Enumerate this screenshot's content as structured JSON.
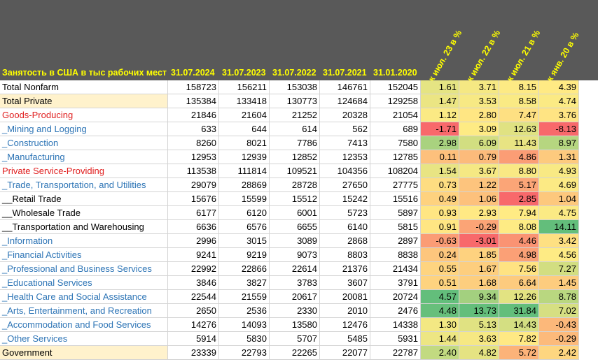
{
  "header": {
    "title": "Занятость в США в тыс рабочих мест",
    "columns": [
      "31.07.2024",
      "31.07.2023",
      "31.07.2022",
      "31.07.2021",
      "31.01.2020",
      "к июл. 23 в %",
      "к июл. 22 в %",
      "к июл. 21 в %",
      "к янв. 20 в %"
    ]
  },
  "table": {
    "rows": [
      {
        "label": "Total Nonfarm",
        "color": "#000000",
        "cells": [
          "158723",
          "156211",
          "153038",
          "146761",
          "152045",
          "1.61",
          "3.71",
          "8.15",
          "4.39"
        ]
      },
      {
        "label": "Total Private",
        "color": "#000000",
        "bg": "#fff2cc",
        "cells": [
          "135384",
          "133418",
          "130773",
          "124684",
          "129258",
          "1.47",
          "3.53",
          "8.58",
          "4.74"
        ]
      },
      {
        "label": "Goods-Producing",
        "color": "#e02020",
        "cells": [
          "21846",
          "21604",
          "21252",
          "20328",
          "21054",
          "1.12",
          "2.80",
          "7.47",
          "3.76"
        ]
      },
      {
        "label": "_Mining and Logging",
        "color": "#2e75b6",
        "cells": [
          "633",
          "644",
          "614",
          "562",
          "689",
          "-1.71",
          "3.09",
          "12.63",
          "-8.13"
        ]
      },
      {
        "label": "_Construction",
        "color": "#2e75b6",
        "cells": [
          "8260",
          "8021",
          "7786",
          "7413",
          "7580",
          "2.98",
          "6.09",
          "11.43",
          "8.97"
        ]
      },
      {
        "label": "_Manufacturing",
        "color": "#2e75b6",
        "cells": [
          "12953",
          "12939",
          "12852",
          "12353",
          "12785",
          "0.11",
          "0.79",
          "4.86",
          "1.31"
        ]
      },
      {
        "label": "Private Service-Providing",
        "color": "#e02020",
        "cells": [
          "113538",
          "111814",
          "109521",
          "104356",
          "108204",
          "1.54",
          "3.67",
          "8.80",
          "4.93"
        ]
      },
      {
        "label": "_Trade, Transportation, and Utilities",
        "color": "#2e75b6",
        "cells": [
          "29079",
          "28869",
          "28728",
          "27650",
          "27775",
          "0.73",
          "1.22",
          "5.17",
          "4.69"
        ]
      },
      {
        "label": "__Retail Trade",
        "color": "#000000",
        "cells": [
          "15676",
          "15599",
          "15512",
          "15242",
          "15516",
          "0.49",
          "1.06",
          "2.85",
          "1.04"
        ]
      },
      {
        "label": "__Wholesale Trade",
        "color": "#000000",
        "cells": [
          "6177",
          "6120",
          "6001",
          "5723",
          "5897",
          "0.93",
          "2.93",
          "7.94",
          "4.75"
        ]
      },
      {
        "label": "__Transportation and Warehousing",
        "color": "#000000",
        "cells": [
          "6636",
          "6576",
          "6655",
          "6140",
          "5815",
          "0.91",
          "-0.29",
          "8.08",
          "14.11"
        ]
      },
      {
        "label": "_Information",
        "color": "#2e75b6",
        "cells": [
          "2996",
          "3015",
          "3089",
          "2868",
          "2897",
          "-0.63",
          "-3.01",
          "4.46",
          "3.42"
        ]
      },
      {
        "label": "_Financial Activities",
        "color": "#2e75b6",
        "cells": [
          "9241",
          "9219",
          "9073",
          "8803",
          "8838",
          "0.24",
          "1.85",
          "4.98",
          "4.56"
        ]
      },
      {
        "label": "_Professional and Business Services",
        "color": "#2e75b6",
        "cells": [
          "22992",
          "22866",
          "22614",
          "21376",
          "21434",
          "0.55",
          "1.67",
          "7.56",
          "7.27"
        ]
      },
      {
        "label": "_Educational Services",
        "color": "#2e75b6",
        "cells": [
          "3846",
          "3827",
          "3783",
          "3607",
          "3791",
          "0.51",
          "1.68",
          "6.64",
          "1.45"
        ]
      },
      {
        "label": "_Health Care and Social Assistance",
        "color": "#2e75b6",
        "cells": [
          "22544",
          "21559",
          "20617",
          "20081",
          "20724",
          "4.57",
          "9.34",
          "12.26",
          "8.78"
        ]
      },
      {
        "label": "_Arts, Entertainment, and Recreation",
        "color": "#2e75b6",
        "cells": [
          "2650",
          "2536",
          "2330",
          "2010",
          "2476",
          "4.48",
          "13.73",
          "31.84",
          "7.02"
        ]
      },
      {
        "label": "_Accommodation and Food Services",
        "color": "#2e75b6",
        "cells": [
          "14276",
          "14093",
          "13580",
          "12476",
          "14338",
          "1.30",
          "5.13",
          "14.43",
          "-0.43"
        ]
      },
      {
        "label": "_Other Services",
        "color": "#2e75b6",
        "cells": [
          "5914",
          "5830",
          "5707",
          "5485",
          "5931",
          "1.44",
          "3.63",
          "7.82",
          "-0.29"
        ]
      },
      {
        "label": "Government",
        "color": "#000000",
        "bg": "#fff2cc",
        "cells": [
          "23339",
          "22793",
          "22265",
          "22077",
          "22787",
          "2.40",
          "4.82",
          "5.72",
          "2.42"
        ]
      }
    ]
  }
}
